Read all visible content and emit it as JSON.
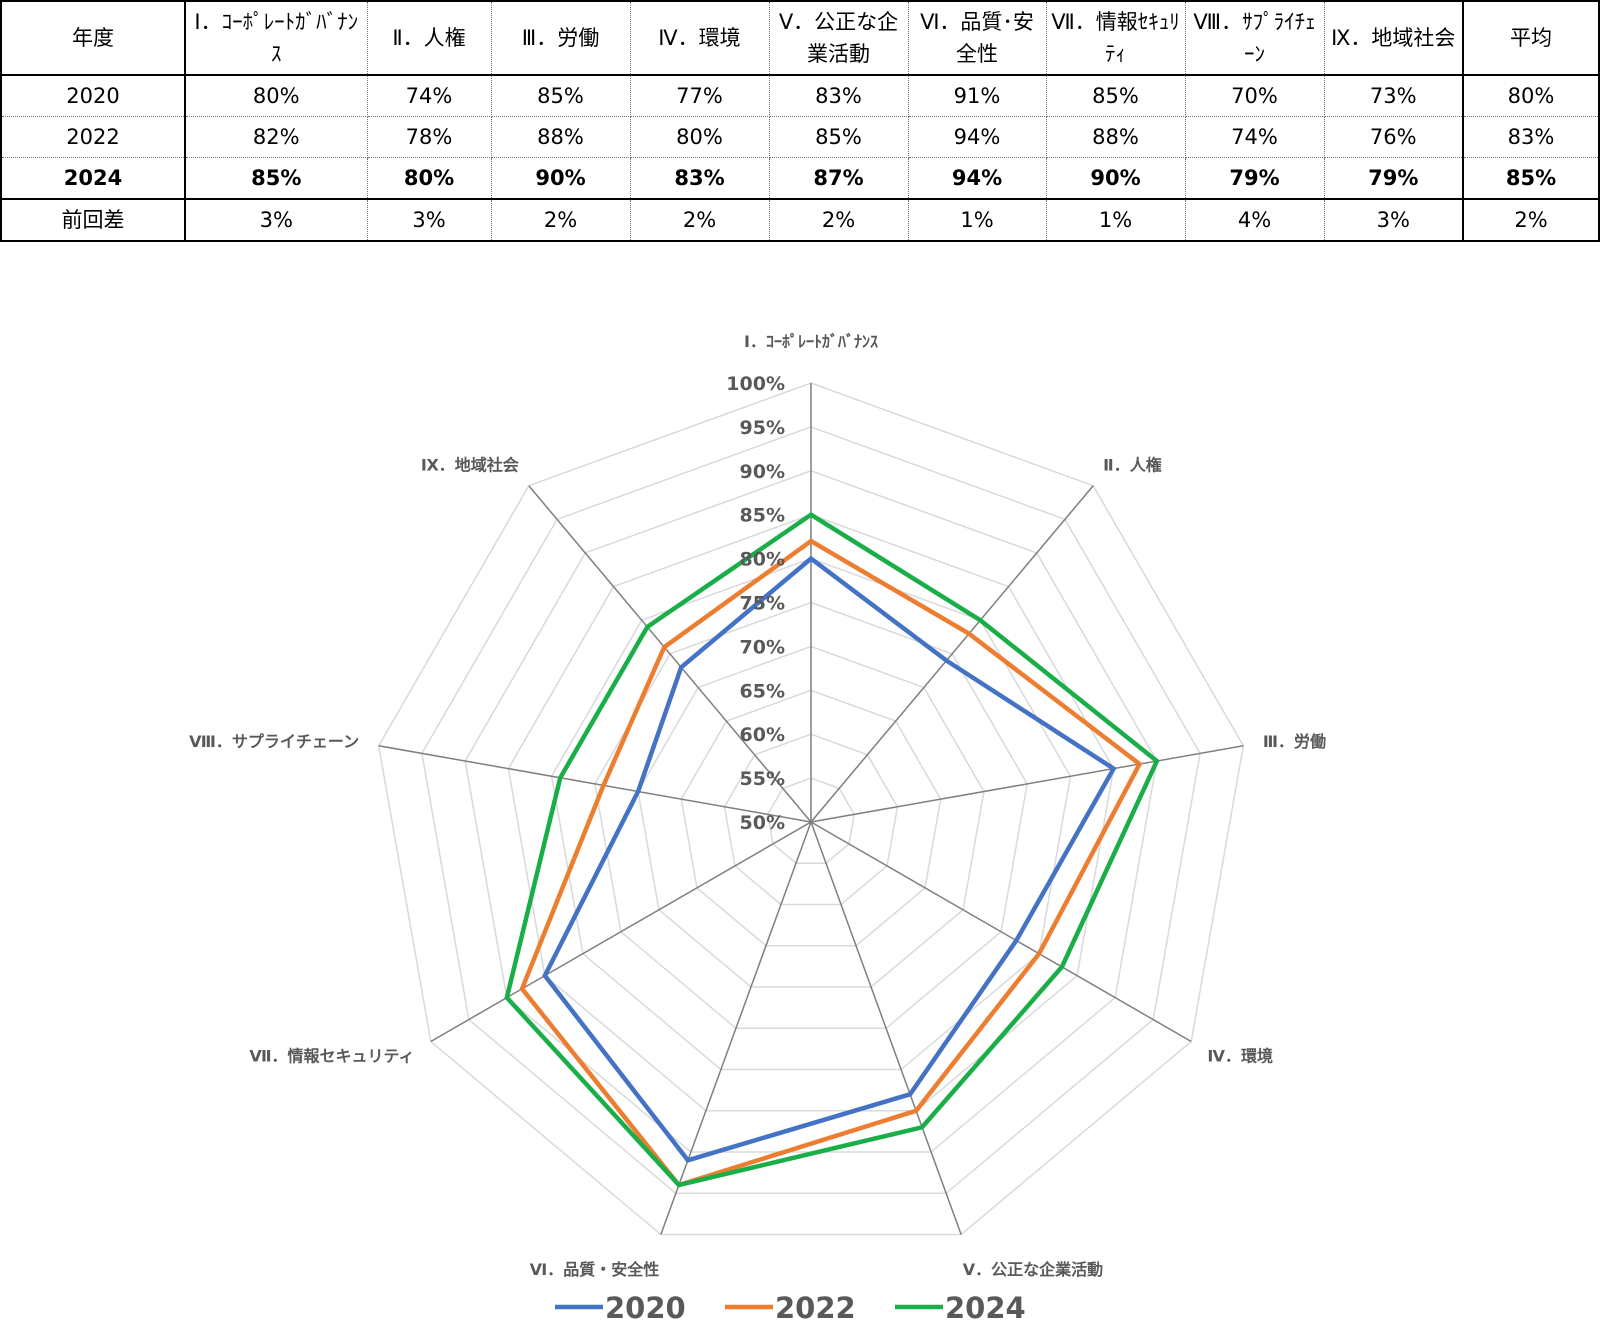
{
  "table": {
    "headers": [
      "年度",
      "Ⅰ．ｺｰﾎﾟﾚｰﾄｶﾞﾊﾞﾅﾝｽ",
      "Ⅱ．人権",
      "Ⅲ．労働",
      "Ⅳ．環境",
      "Ⅴ．公正な企業活動",
      "Ⅵ．品質･安全性",
      "Ⅶ．情報ｾｷｭﾘﾃｨ",
      "Ⅷ．ｻﾌﾟﾗｲﾁｪｰﾝ",
      "Ⅸ．地域社会",
      "平均"
    ],
    "rows": [
      [
        "2020",
        "80%",
        "74%",
        "85%",
        "77%",
        "83%",
        "91%",
        "85%",
        "70%",
        "73%",
        "80%"
      ],
      [
        "2022",
        "82%",
        "78%",
        "88%",
        "80%",
        "85%",
        "94%",
        "88%",
        "74%",
        "76%",
        "83%"
      ],
      [
        "2024",
        "85%",
        "80%",
        "90%",
        "83%",
        "87%",
        "94%",
        "90%",
        "79%",
        "79%",
        "85%"
      ],
      [
        "前回差",
        "3%",
        "3%",
        "2%",
        "2%",
        "2%",
        "1%",
        "1%",
        "4%",
        "3%",
        "2%"
      ]
    ]
  },
  "chart_data": {
    "type": "radar",
    "categories": [
      "Ⅰ．ｺｰﾎﾟﾚｰﾄｶﾞﾊﾞﾅﾝｽ",
      "Ⅱ．人権",
      "Ⅲ．労働",
      "Ⅳ．環境",
      "Ⅴ．公正な企業活動",
      "Ⅵ．品質・安全性",
      "Ⅶ．情報セキュリティ",
      "Ⅷ．サプライチェーン",
      "Ⅸ．地域社会"
    ],
    "series": [
      {
        "name": "2020",
        "color": "#4472c4",
        "values": [
          80,
          74,
          85,
          77,
          83,
          91,
          85,
          70,
          73
        ]
      },
      {
        "name": "2022",
        "color": "#ed7d31",
        "values": [
          82,
          78,
          88,
          80,
          85,
          94,
          88,
          74,
          76
        ]
      },
      {
        "name": "2024",
        "color": "#1aae48",
        "values": [
          85,
          80,
          90,
          83,
          87,
          94,
          90,
          79,
          79
        ]
      }
    ],
    "rlim": [
      50,
      100
    ],
    "ticks": [
      "50%",
      "55%",
      "60%",
      "65%",
      "70%",
      "75%",
      "80%",
      "85%",
      "90%",
      "95%",
      "100%"
    ],
    "tick_values": [
      50,
      55,
      60,
      65,
      70,
      75,
      80,
      85,
      90,
      95,
      100
    ],
    "legend": "bottom"
  }
}
